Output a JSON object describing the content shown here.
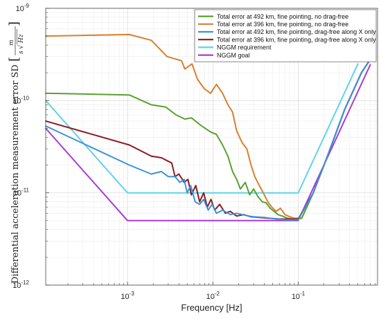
{
  "chart_data": {
    "type": "line",
    "title": "",
    "xlabel": "Frequency [Hz]",
    "ylabel": "Differential acceleration measurement error SD",
    "yunit": {
      "numerator": "m",
      "denominator_prefix": "s",
      "denominator_root": "Hz"
    },
    "xscale": "log",
    "yscale": "log",
    "xlim": [
      0.00011,
      0.85
    ],
    "ylim": [
      1e-12,
      1e-09
    ],
    "grid": true,
    "legend_position": "top-right",
    "xticks": [
      {
        "value": 0.001,
        "base": "10",
        "exp": "-3"
      },
      {
        "value": 0.01,
        "base": "10",
        "exp": "-2"
      },
      {
        "value": 0.1,
        "base": "10",
        "exp": "-1"
      }
    ],
    "yticks": [
      {
        "value": 1e-12,
        "base": "10",
        "exp": "-12"
      },
      {
        "value": 1e-11,
        "base": "10",
        "exp": "-11"
      },
      {
        "value": 1e-10,
        "base": "10",
        "exp": "-10"
      },
      {
        "value": 1e-09,
        "base": "10",
        "exp": "-9"
      }
    ],
    "series": [
      {
        "name": "Total error at 492 km, fine pointing, no drag-free",
        "color": "#5aa02c",
        "x": [
          0.00011,
          0.00105,
          0.0019,
          0.0028,
          0.0037,
          0.0047,
          0.0056,
          0.0074,
          0.0093,
          0.011,
          0.013,
          0.015,
          0.017,
          0.019,
          0.021,
          0.024,
          0.027,
          0.03,
          0.034,
          0.038,
          0.042,
          0.047,
          0.052,
          0.058,
          0.065,
          0.075,
          0.085,
          0.095,
          0.11,
          0.15,
          0.22,
          0.35,
          0.55,
          0.7
        ],
        "y": [
          1.2e-10,
          1.15e-10,
          9e-11,
          8.5e-11,
          7e-11,
          6.3e-11,
          6.5e-11,
          5.3e-11,
          4.6e-11,
          4.3e-11,
          3.3e-11,
          2.5e-11,
          1.7e-11,
          1.4e-11,
          1.1e-11,
          1.3e-11,
          9.5e-12,
          1.1e-11,
          9e-12,
          8e-12,
          7.8e-12,
          6.8e-12,
          6.3e-12,
          5.8e-12,
          5.6e-12,
          5.3e-12,
          5.2e-12,
          5.2e-12,
          5.3e-12,
          1e-11,
          2.5e-11,
          8e-11,
          2e-10,
          2.8e-10
        ]
      },
      {
        "name": "Total error at 396 km, fine pointing, no drag-free",
        "color": "#d97e2b",
        "x": [
          0.00011,
          0.00105,
          0.0019,
          0.0029,
          0.0043,
          0.0047,
          0.0057,
          0.0066,
          0.0079,
          0.0094,
          0.011,
          0.013,
          0.015,
          0.017,
          0.019,
          0.022,
          0.025,
          0.028,
          0.031,
          0.035,
          0.039,
          0.044,
          0.049,
          0.055,
          0.062,
          0.07,
          0.08,
          0.09,
          0.11,
          0.15,
          0.22,
          0.35,
          0.55,
          0.7
        ],
        "y": [
          5e-10,
          5.2e-10,
          4.5e-10,
          3e-10,
          2.7e-10,
          2.2e-10,
          2.5e-10,
          1.7e-10,
          1.35e-10,
          1.2e-10,
          1.5e-10,
          1.2e-10,
          9e-11,
          7.5e-11,
          4.7e-11,
          3.5e-11,
          3e-11,
          2e-11,
          1.5e-11,
          1.2e-11,
          1e-11,
          8e-12,
          7e-12,
          6.3e-12,
          6.8e-12,
          5.8e-12,
          5.5e-12,
          5.3e-12,
          5.3e-12,
          1e-11,
          2.5e-11,
          8e-11,
          2e-10,
          2.8e-10
        ]
      },
      {
        "name": "Total error at 492 km, fine pointing, drag-free along X only",
        "color": "#3a92dc",
        "x": [
          0.00011,
          0.00105,
          0.0019,
          0.0025,
          0.003,
          0.0036,
          0.0041,
          0.0046,
          0.005,
          0.0055,
          0.0062,
          0.007,
          0.0078,
          0.0088,
          0.0098,
          0.011,
          0.013,
          0.016,
          0.019,
          0.024,
          0.03,
          0.04,
          0.055,
          0.075,
          0.1,
          0.15,
          0.22,
          0.35,
          0.55,
          0.7
        ],
        "y": [
          5.3e-11,
          2e-11,
          1.6e-11,
          1.7e-11,
          1.5e-11,
          1.5e-11,
          1.3e-11,
          1.4e-11,
          1e-11,
          1.2e-11,
          8e-12,
          7.5e-12,
          8.5e-12,
          6.5e-12,
          7.5e-12,
          6e-12,
          6.5e-12,
          5.8e-12,
          6e-12,
          5.7e-12,
          5.5e-12,
          5.4e-12,
          5.2e-12,
          5.1e-12,
          5.1e-12,
          1e-11,
          2.5e-11,
          8e-11,
          2e-10,
          2.8e-10
        ]
      },
      {
        "name": "Total error at 396 km, fine pointing, drag-free along X only",
        "color": "#8b1a1e",
        "x": [
          0.00011,
          0.00105,
          0.0019,
          0.0025,
          0.0033,
          0.0036,
          0.004,
          0.0046,
          0.0051,
          0.0056,
          0.0063,
          0.007,
          0.0078,
          0.0086,
          0.0095,
          0.0105,
          0.012,
          0.014,
          0.016,
          0.019,
          0.023,
          0.028,
          0.035,
          0.045,
          0.06,
          0.08,
          0.1,
          0.15,
          0.22,
          0.35,
          0.55,
          0.7
        ],
        "y": [
          6e-11,
          3.3e-11,
          2.5e-11,
          2.4e-11,
          2.1e-11,
          1.5e-11,
          1.6e-11,
          1.3e-11,
          1.4e-11,
          9.5e-12,
          1.2e-11,
          8e-12,
          1e-11,
          7e-12,
          8.5e-12,
          6.5e-12,
          7.5e-12,
          6e-12,
          6.3e-12,
          5.6e-12,
          5.8e-12,
          5.5e-12,
          5.4e-12,
          5.3e-12,
          5.2e-12,
          5.2e-12,
          5.2e-12,
          1e-11,
          2.5e-11,
          8e-11,
          2e-10,
          2.8e-10
        ]
      },
      {
        "name": "NGGM requirement",
        "color": "#5fd3e6",
        "x": [
          0.00011,
          0.001,
          0.1,
          0.5
        ],
        "y": [
          1e-10,
          1e-11,
          1e-11,
          2.5e-10
        ]
      },
      {
        "name": "NGGM goal",
        "color": "#a63ad8",
        "x": [
          0.00011,
          0.001,
          0.1,
          0.7
        ],
        "y": [
          5e-11,
          5e-12,
          5e-12,
          2.45e-10
        ]
      }
    ]
  }
}
